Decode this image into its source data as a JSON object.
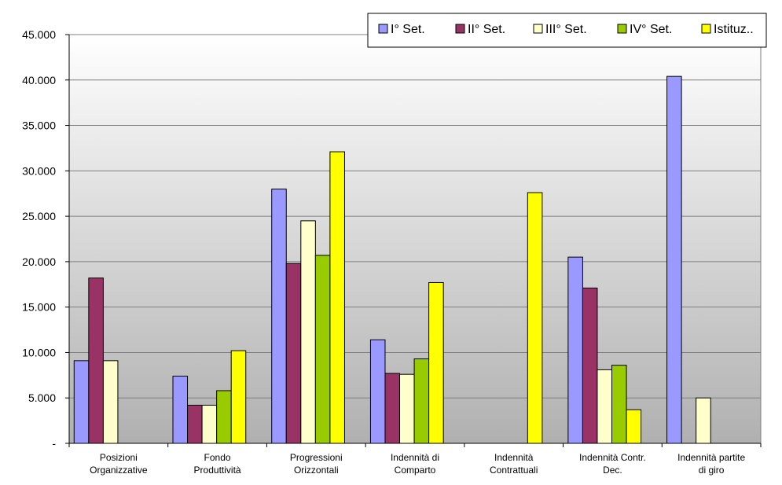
{
  "chart_data": {
    "type": "bar",
    "title": "",
    "xlabel": "",
    "ylabel": "",
    "ylim": [
      0,
      45000
    ],
    "yticks": [
      0,
      5000,
      10000,
      15000,
      20000,
      25000,
      30000,
      35000,
      40000,
      45000
    ],
    "ytick_labels": [
      "-",
      "5.000",
      "10.000",
      "15.000",
      "20.000",
      "25.000",
      "30.000",
      "35.000",
      "40.000",
      "45.000"
    ],
    "grid": true,
    "legend_position": "top-right",
    "categories": [
      [
        "Posizioni",
        "Organizzative"
      ],
      [
        "Fondo",
        "Produttività"
      ],
      [
        "Progressioni",
        "Orizzontali"
      ],
      [
        "Indennità di",
        "Comparto"
      ],
      [
        "Indennità",
        "Contrattuali"
      ],
      [
        "Indennità Contr.",
        "Dec."
      ],
      [
        "Indennità partite",
        "di giro"
      ]
    ],
    "series": [
      {
        "name": "I° Set.",
        "color": "#9999ff",
        "values": [
          9100,
          7400,
          28000,
          11400,
          0,
          20500,
          40400
        ]
      },
      {
        "name": "II° Set.",
        "color": "#993366",
        "values": [
          18200,
          4200,
          19800,
          7700,
          0,
          17100,
          0
        ]
      },
      {
        "name": "III° Set.",
        "color": "#ffffcc",
        "values": [
          9100,
          4200,
          24500,
          7600,
          0,
          8100,
          5000
        ]
      },
      {
        "name": "IV° Set.",
        "color": "#99cc00",
        "values": [
          0,
          5800,
          20700,
          9300,
          0,
          8600,
          0
        ]
      },
      {
        "name": "Istituz..",
        "color": "#ffff00",
        "values": [
          0,
          10200,
          32100,
          17700,
          27600,
          3700,
          0
        ]
      }
    ]
  }
}
